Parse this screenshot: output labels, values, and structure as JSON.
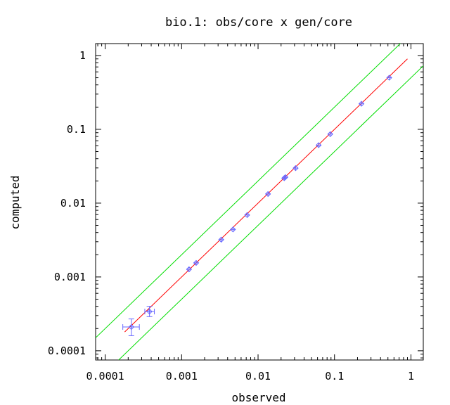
{
  "chart_data": {
    "type": "scatter",
    "title": "bio.1: obs/core x gen/core",
    "xlabel": "observed",
    "ylabel": "computed",
    "x_scale": "log",
    "y_scale": "log",
    "xlim": [
      7.5e-05,
      1.45
    ],
    "ylim": [
      7.5e-05,
      1.45
    ],
    "x_ticks": [
      {
        "value": 0.0001,
        "label": "0.0001"
      },
      {
        "value": 0.001,
        "label": "0.001"
      },
      {
        "value": 0.01,
        "label": "0.01"
      },
      {
        "value": 0.1,
        "label": "0.1"
      },
      {
        "value": 1,
        "label": "1"
      }
    ],
    "y_ticks": [
      {
        "value": 0.0001,
        "label": "0.0001"
      },
      {
        "value": 0.001,
        "label": "0.001"
      },
      {
        "value": 0.01,
        "label": "0.01"
      },
      {
        "value": 0.1,
        "label": "0.1"
      },
      {
        "value": 1,
        "label": "1"
      }
    ],
    "grid": false,
    "series": [
      {
        "kind": "points_with_error_bars",
        "color": "#6a6aff",
        "points": [
          {
            "x": 0.00022,
            "y": 0.00021,
            "xerr": [
              0.00017,
              0.00028
            ],
            "yerr": [
              0.00016,
              0.00027
            ]
          },
          {
            "x": 0.00038,
            "y": 0.00034,
            "xerr": [
              0.00033,
              0.00044
            ],
            "yerr": [
              0.00029,
              0.0004
            ]
          },
          {
            "x": 0.00125,
            "y": 0.00127
          },
          {
            "x": 0.00155,
            "y": 0.00155
          },
          {
            "x": 0.0033,
            "y": 0.0032
          },
          {
            "x": 0.0047,
            "y": 0.0044
          },
          {
            "x": 0.0072,
            "y": 0.0069
          },
          {
            "x": 0.0135,
            "y": 0.0133
          },
          {
            "x": 0.022,
            "y": 0.0218
          },
          {
            "x": 0.0228,
            "y": 0.0225
          },
          {
            "x": 0.031,
            "y": 0.0298
          },
          {
            "x": 0.062,
            "y": 0.061
          },
          {
            "x": 0.088,
            "y": 0.086
          },
          {
            "x": 0.225,
            "y": 0.222
          },
          {
            "x": 0.52,
            "y": 0.5
          }
        ]
      },
      {
        "kind": "line",
        "color": "#ff0000",
        "x": [
          0.00018,
          0.9
        ],
        "y": [
          0.00018,
          0.9
        ],
        "description": "y = x"
      },
      {
        "kind": "line",
        "color": "#00dd00",
        "x": [
          7.5e-05,
          0.75
        ],
        "y": [
          0.00015,
          1.5
        ],
        "description": "upper band (y = 2x)"
      },
      {
        "kind": "line",
        "color": "#00dd00",
        "x": [
          0.00015,
          1.45
        ],
        "y": [
          7.5e-05,
          0.725
        ],
        "description": "lower band (y = x/2)"
      }
    ]
  }
}
